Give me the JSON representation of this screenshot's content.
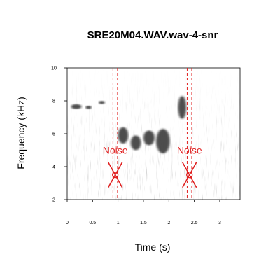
{
  "chart_data": {
    "type": "heatmap",
    "subtype": "spectrogram",
    "title": "SRE20M04.WAV.wav-4-snr",
    "xlabel": "Time (s)",
    "ylabel": "Frequency (kHz)",
    "xlim": [
      0,
      3.4
    ],
    "ylim": [
      2,
      10
    ],
    "xticks": [
      0,
      0.5,
      1,
      1.5,
      2,
      2.5,
      3
    ],
    "xtick_labels": [
      "0",
      "0.5",
      "1",
      "1.5",
      "2",
      "2.5",
      "3"
    ],
    "yticks": [
      2,
      4,
      6,
      8,
      10
    ],
    "ytick_labels": [
      "2",
      "4",
      "6",
      "8",
      "10"
    ],
    "grid": false,
    "colormap": "grayscale",
    "annotations": [
      {
        "text": "Noise",
        "color": "#e02020",
        "x_left": 0.9,
        "x_right": 0.99,
        "marker_y": 3.5,
        "label_y": 5.0
      },
      {
        "text": "Noise",
        "color": "#e02020",
        "x_left": 2.36,
        "x_right": 2.45,
        "marker_y": 3.5,
        "label_y": 5.0
      }
    ],
    "sound_events": [
      {
        "t0": 0.08,
        "t1": 0.28,
        "f0": 7.5,
        "f1": 7.8
      },
      {
        "t0": 0.36,
        "t1": 0.48,
        "f0": 7.5,
        "f1": 7.7
      },
      {
        "t0": 0.62,
        "t1": 0.74,
        "f0": 7.8,
        "f1": 8.0
      },
      {
        "t0": 1.0,
        "t1": 1.2,
        "f0": 5.4,
        "f1": 6.4
      },
      {
        "t0": 1.25,
        "t1": 1.45,
        "f0": 5.0,
        "f1": 5.9
      },
      {
        "t0": 1.5,
        "t1": 1.72,
        "f0": 5.3,
        "f1": 6.2
      },
      {
        "t0": 1.75,
        "t1": 2.02,
        "f0": 4.8,
        "f1": 6.3
      },
      {
        "t0": 2.18,
        "t1": 2.34,
        "f0": 6.9,
        "f1": 8.3
      }
    ]
  }
}
